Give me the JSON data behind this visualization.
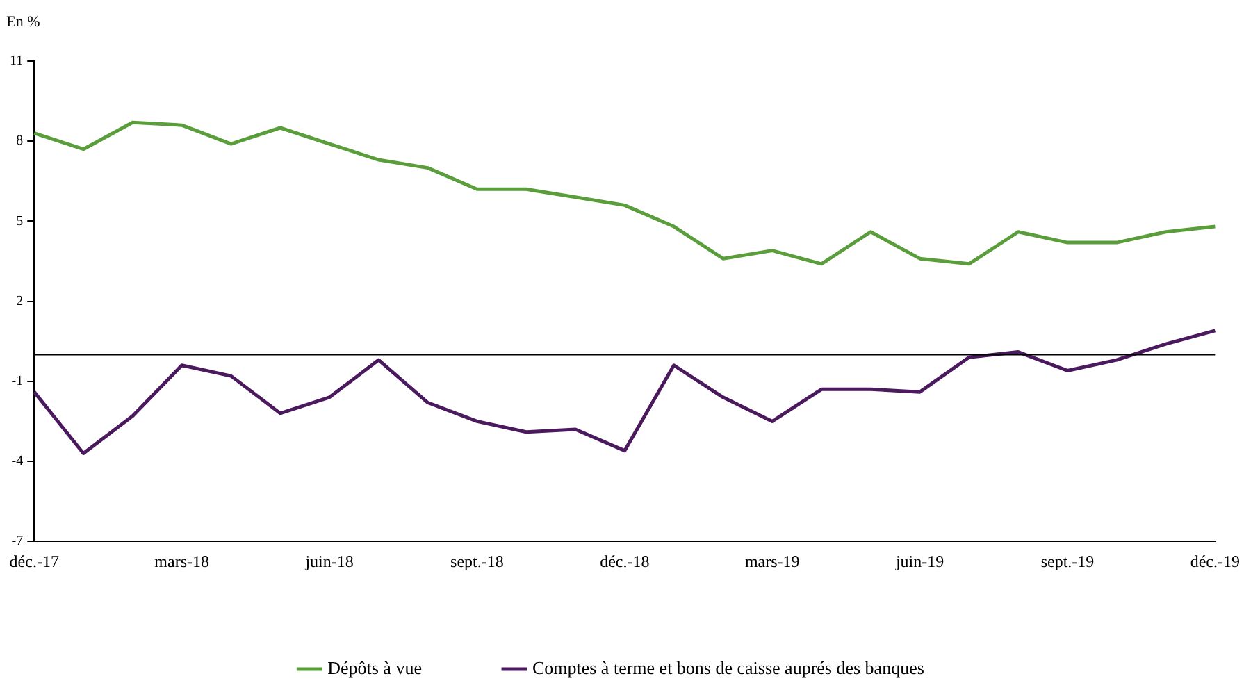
{
  "chart_data": {
    "type": "line",
    "ylabel": "En %",
    "categories": [
      "déc.-17",
      null,
      null,
      "mars-18",
      null,
      null,
      "juin-18",
      null,
      null,
      "sept.-18",
      null,
      null,
      "déc.-18",
      null,
      null,
      "mars-19",
      null,
      null,
      "juin-19",
      null,
      null,
      "sept.-19",
      null,
      null,
      "déc.-19"
    ],
    "series": [
      {
        "name": "Dépôts à vue",
        "color": "#5a9e3c",
        "values": [
          8.3,
          7.7,
          8.7,
          8.6,
          7.9,
          8.5,
          7.9,
          7.3,
          7.0,
          6.2,
          6.2,
          5.9,
          5.6,
          4.8,
          3.6,
          3.9,
          3.4,
          4.6,
          3.6,
          3.4,
          4.6,
          4.2,
          4.2,
          4.6,
          4.8
        ]
      },
      {
        "name": "Comptes à terme et bons de caisse auprés des banques",
        "color": "#4b1a5e",
        "values": [
          -1.4,
          -3.7,
          -2.3,
          -0.4,
          -0.8,
          -2.2,
          -1.6,
          -0.2,
          -1.8,
          -2.5,
          -2.9,
          -2.8,
          -3.6,
          -0.4,
          -1.6,
          -2.5,
          -1.3,
          -1.3,
          -1.4,
          -0.1,
          0.1,
          -0.6,
          -0.2,
          0.4,
          0.9
        ]
      }
    ],
    "ylim": [
      -7,
      11
    ],
    "yticks": [
      -7,
      -4,
      -1,
      2,
      5,
      8,
      11
    ],
    "ref_lines": [
      {
        "axis": "y",
        "value": 0,
        "color": "#000000"
      }
    ],
    "grid": false,
    "legend": "bottom",
    "marker": "none",
    "line_style": "solid"
  }
}
